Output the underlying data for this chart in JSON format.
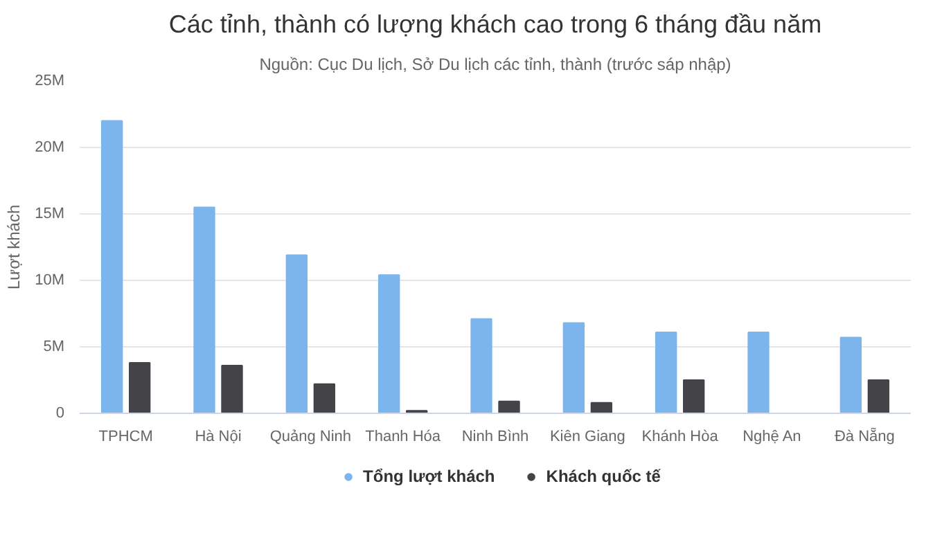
{
  "chart_data": {
    "type": "bar",
    "title": "Các tỉnh, thành có lượng khách cao trong 6 tháng đầu năm",
    "subtitle": "Nguồn: Cục Du lịch, Sở Du lịch các tỉnh, thành (trước sáp nhập)",
    "ylabel": "Lượt khách",
    "categories": [
      "TPHCM",
      "Hà Nội",
      "Quảng Ninh",
      "Thanh Hóa",
      "Ninh Bình",
      "Kiên Giang",
      "Khánh Hòa",
      "Nghệ An",
      "Đà Nẵng"
    ],
    "series": [
      {
        "name": "Tổng lượt khách",
        "color": "#7cb5ec",
        "values": [
          22.0,
          15.5,
          11.9,
          10.4,
          7.1,
          6.8,
          6.1,
          6.1,
          5.7
        ]
      },
      {
        "name": "Khách quốc tế",
        "color": "#434348",
        "values": [
          3.8,
          3.6,
          2.2,
          0.2,
          0.9,
          0.8,
          2.5,
          null,
          2.5
        ]
      }
    ],
    "ylim": [
      0,
      25
    ],
    "yticks": [
      0,
      {
        "value": 5,
        "label": "5M"
      },
      {
        "value": 10,
        "label": "10M"
      },
      {
        "value": 15,
        "label": "15M"
      },
      {
        "value": 20,
        "label": "20M"
      },
      {
        "value": 25,
        "label": "25M"
      }
    ],
    "grid": "y",
    "legend": "bottom"
  }
}
